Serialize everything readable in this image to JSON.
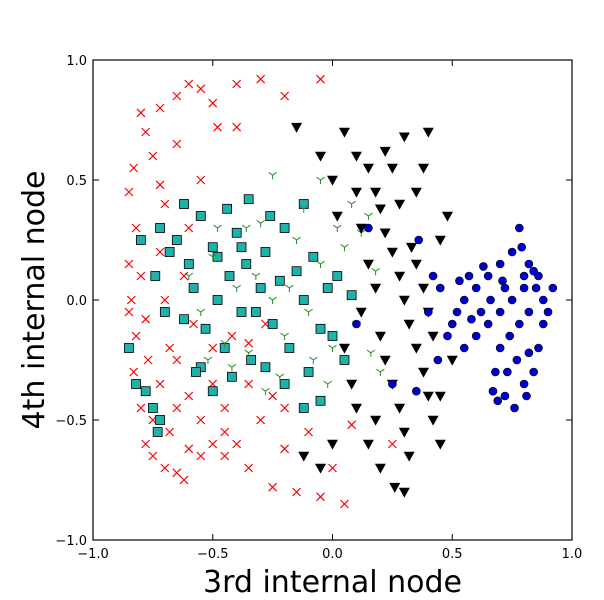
{
  "chart_data": {
    "type": "scatter",
    "title": "",
    "xlabel": "3rd internal node",
    "ylabel": "4th internal node",
    "xlim": [
      -1.0,
      1.0
    ],
    "ylim": [
      -1.0,
      1.0
    ],
    "xticks": [
      "−1.0",
      "−0.5",
      "0.0",
      "0.5",
      "1.0"
    ],
    "xtick_values": [
      -1.0,
      -0.5,
      0.0,
      0.5,
      1.0
    ],
    "yticks": [
      "−1.0",
      "−0.5",
      "0.0",
      "0.5",
      "1.0"
    ],
    "ytick_values": [
      -1.0,
      -0.5,
      0.0,
      0.5,
      1.0
    ],
    "grid": false,
    "legend": "none",
    "series": [
      {
        "marker": "x",
        "color": "#ff0000",
        "points": [
          [
            -0.8,
            0.78
          ],
          [
            -0.78,
            0.7
          ],
          [
            -0.83,
            0.55
          ],
          [
            -0.85,
            0.45
          ],
          [
            -0.82,
            0.3
          ],
          [
            -0.85,
            0.15
          ],
          [
            -0.84,
            0.0
          ],
          [
            -0.85,
            -0.05
          ],
          [
            -0.82,
            -0.15
          ],
          [
            -0.83,
            -0.3
          ],
          [
            -0.8,
            -0.45
          ],
          [
            -0.78,
            -0.6
          ],
          [
            -0.75,
            -0.65
          ],
          [
            -0.7,
            -0.7
          ],
          [
            -0.65,
            -0.72
          ],
          [
            -0.6,
            -0.62
          ],
          [
            -0.55,
            -0.65
          ],
          [
            -0.5,
            -0.6
          ],
          [
            -0.45,
            -0.55
          ],
          [
            -0.35,
            -0.7
          ],
          [
            -0.25,
            -0.78
          ],
          [
            -0.15,
            -0.8
          ],
          [
            -0.05,
            -0.82
          ],
          [
            0.05,
            -0.85
          ],
          [
            0.08,
            -0.52
          ],
          [
            0.25,
            -0.6
          ],
          [
            -0.72,
            0.8
          ],
          [
            -0.65,
            0.85
          ],
          [
            -0.6,
            0.9
          ],
          [
            -0.55,
            0.88
          ],
          [
            -0.5,
            0.82
          ],
          [
            -0.4,
            0.9
          ],
          [
            -0.3,
            0.92
          ],
          [
            -0.2,
            0.85
          ],
          [
            -0.05,
            0.92
          ],
          [
            -0.48,
            0.72
          ],
          [
            -0.75,
            0.6
          ],
          [
            -0.7,
            0.4
          ],
          [
            -0.72,
            0.2
          ],
          [
            -0.7,
            0.0
          ],
          [
            -0.68,
            -0.2
          ],
          [
            -0.72,
            -0.35
          ],
          [
            -0.65,
            -0.45
          ],
          [
            -0.6,
            -0.4
          ],
          [
            -0.55,
            -0.5
          ],
          [
            -0.5,
            -0.35
          ],
          [
            -0.45,
            -0.45
          ],
          [
            -0.4,
            -0.6
          ],
          [
            -0.3,
            -0.5
          ],
          [
            -0.25,
            -0.4
          ],
          [
            -0.2,
            -0.45
          ],
          [
            -0.35,
            -0.35
          ],
          [
            -0.55,
            0.5
          ],
          [
            -0.6,
            0.3
          ],
          [
            -0.62,
            0.1
          ],
          [
            -0.58,
            -0.1
          ],
          [
            -0.65,
            -0.25
          ],
          [
            -0.8,
            0.1
          ],
          [
            -0.78,
            -0.08
          ],
          [
            -0.77,
            -0.25
          ],
          [
            -0.75,
            -0.5
          ],
          [
            -0.68,
            -0.55
          ],
          [
            -0.62,
            -0.75
          ],
          [
            -0.45,
            -0.65
          ],
          [
            -0.2,
            -0.62
          ],
          [
            -0.1,
            -0.55
          ],
          [
            0.0,
            -0.7
          ],
          [
            -0.4,
            0.72
          ],
          [
            -0.65,
            0.65
          ],
          [
            -0.72,
            0.48
          ],
          [
            -0.5,
            -0.2
          ],
          [
            -0.42,
            -0.15
          ],
          [
            -0.35,
            -0.18
          ],
          [
            -0.28,
            -0.1
          ]
        ]
      },
      {
        "marker": "square",
        "color": "#20b2aa",
        "points": [
          [
            -0.85,
            -0.2
          ],
          [
            -0.82,
            -0.35
          ],
          [
            -0.78,
            -0.38
          ],
          [
            -0.75,
            -0.45
          ],
          [
            -0.73,
            -0.55
          ],
          [
            -0.8,
            0.25
          ],
          [
            -0.74,
            0.1
          ],
          [
            -0.72,
            0.3
          ],
          [
            -0.7,
            -0.05
          ],
          [
            -0.68,
            0.2
          ],
          [
            -0.65,
            0.25
          ],
          [
            -0.62,
            0.4
          ],
          [
            -0.6,
            0.15
          ],
          [
            -0.58,
            0.05
          ],
          [
            -0.55,
            0.35
          ],
          [
            -0.53,
            -0.12
          ],
          [
            -0.5,
            0.22
          ],
          [
            -0.48,
            0.0
          ],
          [
            -0.45,
            -0.2
          ],
          [
            -0.43,
            0.1
          ],
          [
            -0.4,
            0.28
          ],
          [
            -0.38,
            -0.05
          ],
          [
            -0.36,
            0.15
          ],
          [
            -0.34,
            -0.25
          ],
          [
            -0.3,
            0.05
          ],
          [
            -0.28,
            0.2
          ],
          [
            -0.25,
            -0.1
          ],
          [
            -0.22,
            0.08
          ],
          [
            -0.2,
            0.3
          ],
          [
            -0.18,
            -0.2
          ],
          [
            -0.15,
            0.12
          ],
          [
            -0.12,
            0.0
          ],
          [
            -0.1,
            -0.3
          ],
          [
            -0.08,
            0.18
          ],
          [
            -0.05,
            -0.12
          ],
          [
            -0.02,
            0.05
          ],
          [
            0.0,
            -0.15
          ],
          [
            0.02,
            0.1
          ],
          [
            0.05,
            -0.25
          ],
          [
            0.08,
            0.02
          ],
          [
            -0.72,
            -0.5
          ],
          [
            -0.55,
            -0.28
          ],
          [
            -0.42,
            -0.32
          ],
          [
            -0.32,
            -0.05
          ],
          [
            -0.26,
            0.35
          ],
          [
            -0.44,
            0.38
          ],
          [
            -0.12,
            0.4
          ],
          [
            -0.5,
            -0.38
          ],
          [
            -0.62,
            -0.08
          ],
          [
            -0.38,
            0.22
          ],
          [
            -0.48,
            0.18
          ],
          [
            -0.57,
            -0.3
          ],
          [
            -0.2,
            -0.35
          ],
          [
            -0.05,
            -0.42
          ],
          [
            -0.12,
            -0.45
          ],
          [
            -0.28,
            -0.28
          ],
          [
            -0.35,
            0.42
          ]
        ]
      },
      {
        "marker": "tri_down",
        "color": "#228b22",
        "points": [
          [
            -0.6,
            0.1
          ],
          [
            -0.55,
            -0.05
          ],
          [
            -0.5,
            0.18
          ],
          [
            -0.45,
            -0.18
          ],
          [
            -0.4,
            0.05
          ],
          [
            -0.35,
            -0.22
          ],
          [
            -0.3,
            0.32
          ],
          [
            -0.25,
            0.0
          ],
          [
            -0.2,
            -0.15
          ],
          [
            -0.15,
            0.25
          ],
          [
            -0.1,
            -0.05
          ],
          [
            -0.05,
            0.15
          ],
          [
            0.0,
            -0.2
          ],
          [
            0.05,
            0.22
          ],
          [
            0.1,
            -0.1
          ],
          [
            0.15,
            0.35
          ],
          [
            0.2,
            -0.3
          ],
          [
            -0.42,
            -0.28
          ],
          [
            -0.32,
            0.1
          ],
          [
            -0.22,
            -0.32
          ],
          [
            -0.12,
            0.38
          ],
          [
            -0.02,
            -0.35
          ],
          [
            0.08,
            0.4
          ],
          [
            0.12,
            0.28
          ],
          [
            0.18,
            0.12
          ],
          [
            -0.48,
            0.3
          ],
          [
            -0.36,
            0.3
          ],
          [
            -0.18,
            0.05
          ],
          [
            -0.08,
            -0.25
          ],
          [
            0.02,
            0.3
          ],
          [
            -0.52,
            -0.25
          ],
          [
            -0.28,
            -0.38
          ],
          [
            0.16,
            -0.22
          ],
          [
            -0.25,
            0.52
          ],
          [
            -0.05,
            0.5
          ]
        ]
      },
      {
        "marker": "triangle_down",
        "color": "#000000",
        "points": [
          [
            0.05,
            0.7
          ],
          [
            0.1,
            0.6
          ],
          [
            0.15,
            0.55
          ],
          [
            0.18,
            0.45
          ],
          [
            0.2,
            0.38
          ],
          [
            0.22,
            0.28
          ],
          [
            0.25,
            0.2
          ],
          [
            0.28,
            0.1
          ],
          [
            0.3,
            0.0
          ],
          [
            0.32,
            -0.1
          ],
          [
            0.35,
            -0.2
          ],
          [
            0.38,
            -0.3
          ],
          [
            0.4,
            -0.4
          ],
          [
            0.42,
            -0.5
          ],
          [
            0.45,
            -0.6
          ],
          [
            0.3,
            0.68
          ],
          [
            0.4,
            0.7
          ],
          [
            0.1,
            0.45
          ],
          [
            0.12,
            0.3
          ],
          [
            0.15,
            0.15
          ],
          [
            0.18,
            0.05
          ],
          [
            0.2,
            -0.15
          ],
          [
            0.22,
            -0.25
          ],
          [
            0.25,
            -0.35
          ],
          [
            0.28,
            -0.45
          ],
          [
            0.3,
            -0.55
          ],
          [
            0.32,
            -0.65
          ],
          [
            0.05,
            -0.2
          ],
          [
            0.08,
            -0.35
          ],
          [
            0.1,
            -0.45
          ],
          [
            0.15,
            -0.6
          ],
          [
            0.2,
            -0.7
          ],
          [
            0.35,
            0.15
          ],
          [
            0.38,
            0.05
          ],
          [
            0.4,
            -0.05
          ],
          [
            0.42,
            -0.15
          ],
          [
            0.45,
            0.25
          ],
          [
            0.48,
            0.35
          ],
          [
            0.5,
            -0.25
          ],
          [
            -0.12,
            -0.65
          ],
          [
            -0.05,
            -0.7
          ],
          [
            0.0,
            -0.6
          ],
          [
            0.02,
            0.35
          ],
          [
            0.0,
            0.5
          ],
          [
            -0.05,
            0.6
          ],
          [
            -0.15,
            0.72
          ],
          [
            0.25,
            0.55
          ],
          [
            0.28,
            0.4
          ],
          [
            0.35,
            0.45
          ],
          [
            0.38,
            0.55
          ],
          [
            0.12,
            -0.05
          ],
          [
            0.18,
            -0.5
          ],
          [
            0.26,
            -0.78
          ],
          [
            0.3,
            -0.8
          ],
          [
            0.45,
            -0.4
          ],
          [
            0.22,
            0.62
          ],
          [
            0.33,
            0.22
          ]
        ]
      },
      {
        "marker": "circle",
        "color": "#0000cd",
        "points": [
          [
            0.78,
            0.3
          ],
          [
            0.75,
            0.2
          ],
          [
            0.8,
            0.1
          ],
          [
            0.85,
            0.05
          ],
          [
            0.82,
            -0.05
          ],
          [
            0.78,
            -0.1
          ],
          [
            0.74,
            -0.15
          ],
          [
            0.7,
            -0.2
          ],
          [
            0.68,
            -0.3
          ],
          [
            0.72,
            -0.4
          ],
          [
            0.76,
            -0.45
          ],
          [
            0.8,
            -0.35
          ],
          [
            0.84,
            -0.3
          ],
          [
            0.86,
            -0.2
          ],
          [
            0.88,
            -0.1
          ],
          [
            0.88,
            0.0
          ],
          [
            0.86,
            0.1
          ],
          [
            0.82,
            0.15
          ],
          [
            0.7,
            0.15
          ],
          [
            0.65,
            0.1
          ],
          [
            0.6,
            0.05
          ],
          [
            0.55,
            0.0
          ],
          [
            0.52,
            -0.05
          ],
          [
            0.5,
            -0.1
          ],
          [
            0.48,
            -0.15
          ],
          [
            0.55,
            -0.2
          ],
          [
            0.6,
            -0.15
          ],
          [
            0.65,
            -0.1
          ],
          [
            0.7,
            -0.05
          ],
          [
            0.75,
            0.0
          ],
          [
            0.8,
            0.05
          ],
          [
            0.72,
            0.05
          ],
          [
            0.66,
            0.0
          ],
          [
            0.62,
            -0.05
          ],
          [
            0.58,
            -0.08
          ],
          [
            0.77,
            -0.25
          ],
          [
            0.82,
            -0.22
          ],
          [
            0.73,
            -0.3
          ],
          [
            0.67,
            -0.38
          ],
          [
            0.84,
            0.12
          ],
          [
            0.9,
            -0.05
          ],
          [
            0.79,
            0.22
          ],
          [
            0.71,
            0.08
          ],
          [
            0.63,
            0.14
          ],
          [
            0.57,
            0.1
          ],
          [
            0.53,
            0.08
          ],
          [
            0.45,
            0.05
          ],
          [
            0.42,
            0.1
          ],
          [
            0.4,
            -0.05
          ],
          [
            0.44,
            -0.25
          ],
          [
            0.36,
            0.25
          ],
          [
            0.15,
            0.3
          ],
          [
            0.25,
            -0.35
          ],
          [
            0.35,
            -0.38
          ],
          [
            0.1,
            -0.1
          ],
          [
            0.92,
            0.05
          ],
          [
            0.69,
            -0.42
          ],
          [
            0.81,
            -0.4
          ]
        ]
      }
    ]
  }
}
